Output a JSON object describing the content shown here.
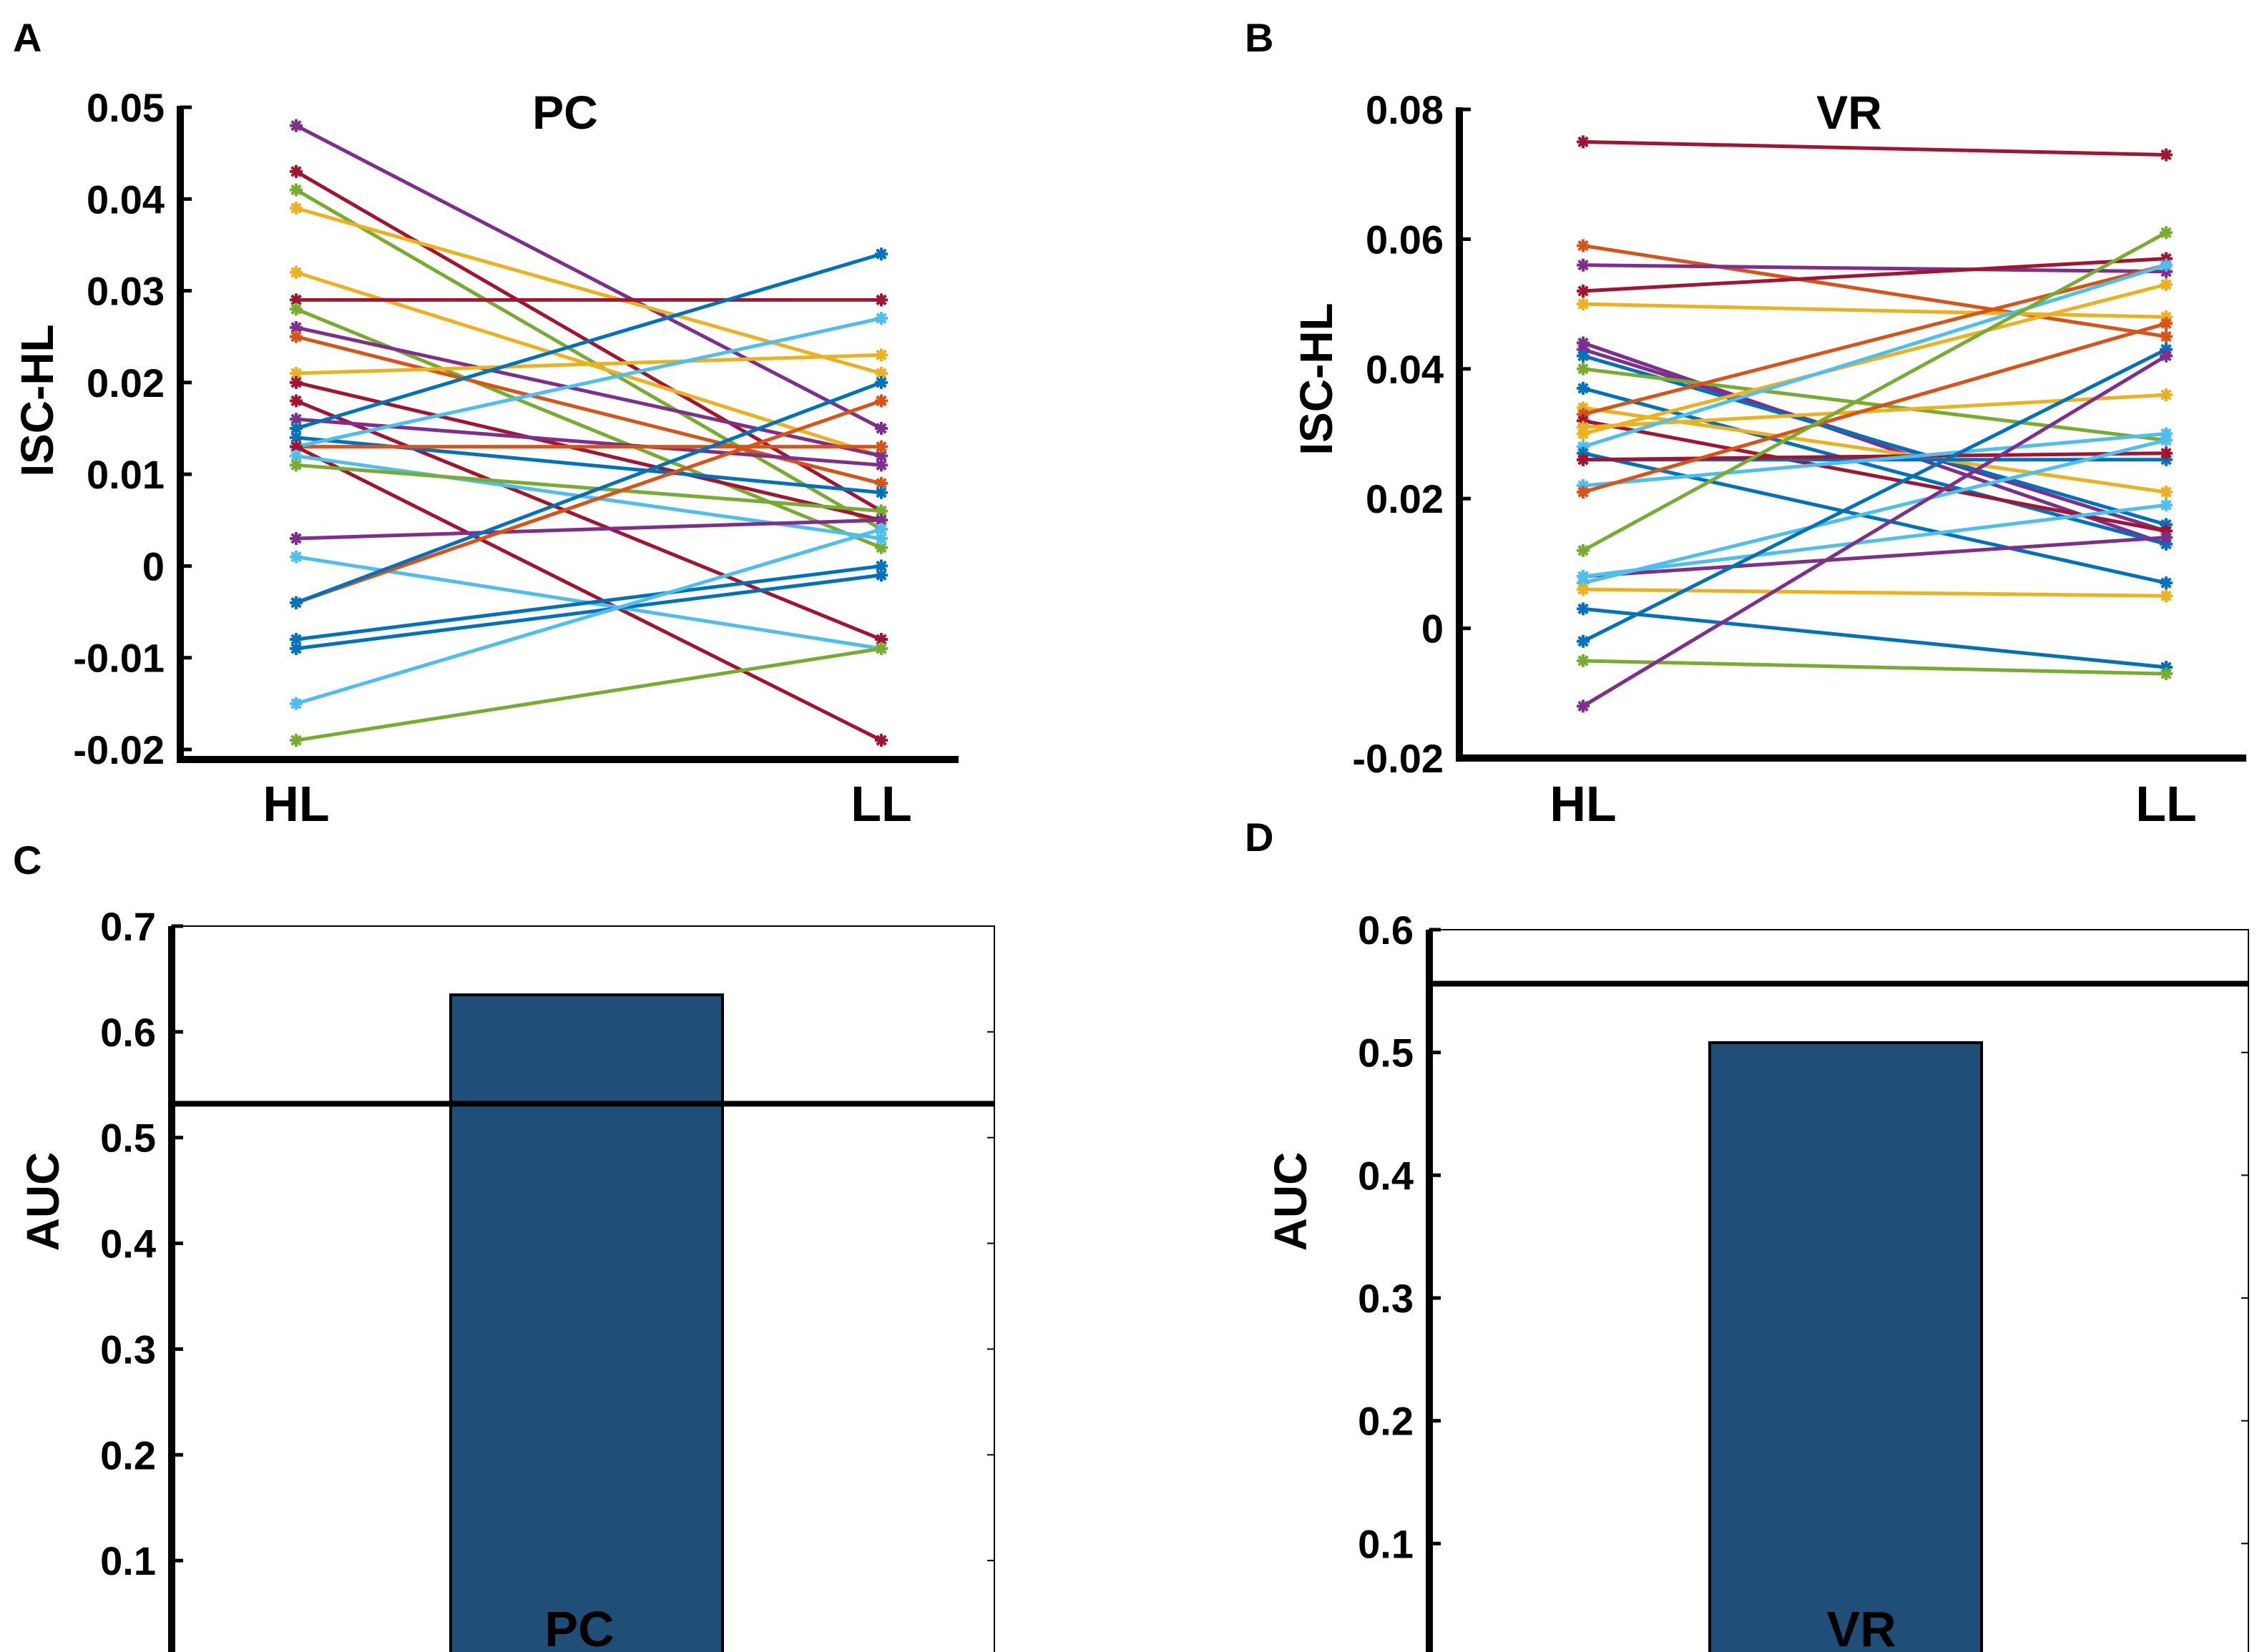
{
  "chart_data": [
    {
      "panel": "A",
      "type": "line",
      "title": "PC",
      "ylabel": "ISC-HL",
      "xlabel": "",
      "categories": [
        "HL",
        "LL"
      ],
      "ylim": [
        -0.02,
        0.05
      ],
      "yticks": [
        0.05,
        0.04,
        0.03,
        0.02,
        0.01,
        0,
        -0.01,
        -0.02
      ],
      "ytick_labels": [
        "0.05",
        "0.04",
        "0.03",
        "0.02",
        "0.01",
        "0",
        "-0.01",
        "-0.02"
      ],
      "series": [
        {
          "name": "s1",
          "color": "#7E2F8E",
          "values": [
            0.048,
            0.015
          ]
        },
        {
          "name": "s2",
          "color": "#A2142F",
          "values": [
            0.043,
            0.006
          ]
        },
        {
          "name": "s3",
          "color": "#77AC30",
          "values": [
            0.041,
            0.004
          ]
        },
        {
          "name": "s4",
          "color": "#EDB120",
          "values": [
            0.039,
            0.021
          ]
        },
        {
          "name": "s5",
          "color": "#EDB120",
          "values": [
            0.032,
            0.012
          ]
        },
        {
          "name": "s6",
          "color": "#A2142F",
          "values": [
            0.029,
            0.029
          ]
        },
        {
          "name": "s7",
          "color": "#77AC30",
          "values": [
            0.028,
            0.002
          ]
        },
        {
          "name": "s8",
          "color": "#7E2F8E",
          "values": [
            0.026,
            0.012
          ]
        },
        {
          "name": "s9",
          "color": "#D95319",
          "values": [
            0.025,
            0.009
          ]
        },
        {
          "name": "s10",
          "color": "#EDB120",
          "values": [
            0.021,
            0.023
          ]
        },
        {
          "name": "s11",
          "color": "#A2142F",
          "values": [
            0.02,
            0.005
          ]
        },
        {
          "name": "s12",
          "color": "#A2142F",
          "values": [
            0.018,
            -0.008
          ]
        },
        {
          "name": "s13",
          "color": "#7E2F8E",
          "values": [
            0.016,
            0.011
          ]
        },
        {
          "name": "s14",
          "color": "#0072BD",
          "values": [
            0.015,
            0.034
          ]
        },
        {
          "name": "s15",
          "color": "#0072BD",
          "values": [
            0.014,
            0.008
          ]
        },
        {
          "name": "s16",
          "color": "#D95319",
          "values": [
            0.013,
            0.013
          ]
        },
        {
          "name": "s17",
          "color": "#4DBEEE",
          "values": [
            0.013,
            0.027
          ]
        },
        {
          "name": "s18",
          "color": "#A2142F",
          "values": [
            0.013,
            -0.019
          ]
        },
        {
          "name": "s19",
          "color": "#4DBEEE",
          "values": [
            0.012,
            0.003
          ]
        },
        {
          "name": "s20",
          "color": "#77AC30",
          "values": [
            0.011,
            0.006
          ]
        },
        {
          "name": "s21",
          "color": "#7E2F8E",
          "values": [
            0.003,
            0.005
          ]
        },
        {
          "name": "s22",
          "color": "#4DBEEE",
          "values": [
            0.001,
            -0.009
          ]
        },
        {
          "name": "s23",
          "color": "#D95319",
          "values": [
            -0.004,
            0.018
          ]
        },
        {
          "name": "s24",
          "color": "#0072BD",
          "values": [
            -0.004,
            0.02
          ]
        },
        {
          "name": "s25",
          "color": "#0072BD",
          "values": [
            -0.008,
            0.0
          ]
        },
        {
          "name": "s26",
          "color": "#0072BD",
          "values": [
            -0.009,
            -0.001
          ]
        },
        {
          "name": "s27",
          "color": "#4DBEEE",
          "values": [
            -0.015,
            0.004
          ]
        },
        {
          "name": "s28",
          "color": "#77AC30",
          "values": [
            -0.019,
            -0.009
          ]
        }
      ]
    },
    {
      "panel": "B",
      "type": "line",
      "title": "VR",
      "ylabel": "ISC-HL",
      "xlabel": "",
      "categories": [
        "HL",
        "LL"
      ],
      "ylim": [
        -0.02,
        0.08
      ],
      "yticks": [
        0.08,
        0.06,
        0.04,
        0.02,
        0,
        -0.02
      ],
      "ytick_labels": [
        "0.08",
        "0.06",
        "0.04",
        "0.02",
        "0",
        "-0.02"
      ],
      "series": [
        {
          "name": "s1",
          "color": "#A2142F",
          "values": [
            0.075,
            0.073
          ]
        },
        {
          "name": "s2",
          "color": "#D95319",
          "values": [
            0.059,
            0.045
          ]
        },
        {
          "name": "s3",
          "color": "#7E2F8E",
          "values": [
            0.056,
            0.055
          ]
        },
        {
          "name": "s4",
          "color": "#A2142F",
          "values": [
            0.052,
            0.057
          ]
        },
        {
          "name": "s5",
          "color": "#EDB120",
          "values": [
            0.05,
            0.048
          ]
        },
        {
          "name": "s6",
          "color": "#7E2F8E",
          "values": [
            0.044,
            0.013
          ]
        },
        {
          "name": "s7",
          "color": "#7E2F8E",
          "values": [
            0.043,
            0.015
          ]
        },
        {
          "name": "s8",
          "color": "#0072BD",
          "values": [
            0.042,
            0.016
          ]
        },
        {
          "name": "s9",
          "color": "#77AC30",
          "values": [
            0.04,
            0.029
          ]
        },
        {
          "name": "s10",
          "color": "#0072BD",
          "values": [
            0.037,
            0.013
          ]
        },
        {
          "name": "s11",
          "color": "#EDB120",
          "values": [
            0.034,
            0.021
          ]
        },
        {
          "name": "s12",
          "color": "#D95319",
          "values": [
            0.033,
            0.056
          ]
        },
        {
          "name": "s13",
          "color": "#A2142F",
          "values": [
            0.032,
            0.015
          ]
        },
        {
          "name": "s14",
          "color": "#EDB120",
          "values": [
            0.031,
            0.036
          ]
        },
        {
          "name": "s15",
          "color": "#EDB120",
          "values": [
            0.03,
            0.053
          ]
        },
        {
          "name": "s16",
          "color": "#4DBEEE",
          "values": [
            0.028,
            0.056
          ]
        },
        {
          "name": "s17",
          "color": "#0072BD",
          "values": [
            0.027,
            0.007
          ]
        },
        {
          "name": "s18",
          "color": "#0072BD",
          "values": [
            0.026,
            0.026
          ]
        },
        {
          "name": "s19",
          "color": "#A2142F",
          "values": [
            0.026,
            0.027
          ]
        },
        {
          "name": "s20",
          "color": "#4DBEEE",
          "values": [
            0.022,
            0.03
          ]
        },
        {
          "name": "s21",
          "color": "#D95319",
          "values": [
            0.021,
            0.047
          ]
        },
        {
          "name": "s22",
          "color": "#77AC30",
          "values": [
            0.012,
            0.061
          ]
        },
        {
          "name": "s23",
          "color": "#7E2F8E",
          "values": [
            0.008,
            0.014
          ]
        },
        {
          "name": "s24",
          "color": "#4DBEEE",
          "values": [
            0.008,
            0.019
          ]
        },
        {
          "name": "s25",
          "color": "#4DBEEE",
          "values": [
            0.007,
            0.029
          ]
        },
        {
          "name": "s26",
          "color": "#EDB120",
          "values": [
            0.006,
            0.005
          ]
        },
        {
          "name": "s27",
          "color": "#0072BD",
          "values": [
            0.003,
            -0.006
          ]
        },
        {
          "name": "s28",
          "color": "#0072BD",
          "values": [
            -0.002,
            0.043
          ]
        },
        {
          "name": "s29",
          "color": "#77AC30",
          "values": [
            -0.005,
            -0.007
          ]
        },
        {
          "name": "s30",
          "color": "#7E2F8E",
          "values": [
            -0.012,
            0.042
          ]
        }
      ]
    },
    {
      "panel": "C",
      "type": "bar",
      "title": "",
      "ylabel": "AUC",
      "xlabel": "",
      "categories": [
        "PC"
      ],
      "values": [
        0.635
      ],
      "bar_color": "#1F4E79",
      "reference_line": 0.532,
      "ylim": [
        0,
        0.7
      ],
      "yticks": [
        0.7,
        0.6,
        0.5,
        0.4,
        0.3,
        0.2,
        0.1
      ],
      "ytick_labels": [
        "0.7",
        "0.6",
        "0.5",
        "0.4",
        "0.3",
        "0.2",
        "0.1"
      ]
    },
    {
      "panel": "D",
      "type": "bar",
      "title": "",
      "ylabel": "AUC",
      "xlabel": "",
      "categories": [
        "VR"
      ],
      "values": [
        0.508
      ],
      "bar_color": "#1F4E79",
      "reference_line": 0.556,
      "ylim": [
        0,
        0.6
      ],
      "yticks": [
        0.6,
        0.5,
        0.4,
        0.3,
        0.2,
        0.1
      ],
      "ytick_labels": [
        "0.6",
        "0.5",
        "0.4",
        "0.3",
        "0.2",
        "0.1"
      ]
    }
  ]
}
